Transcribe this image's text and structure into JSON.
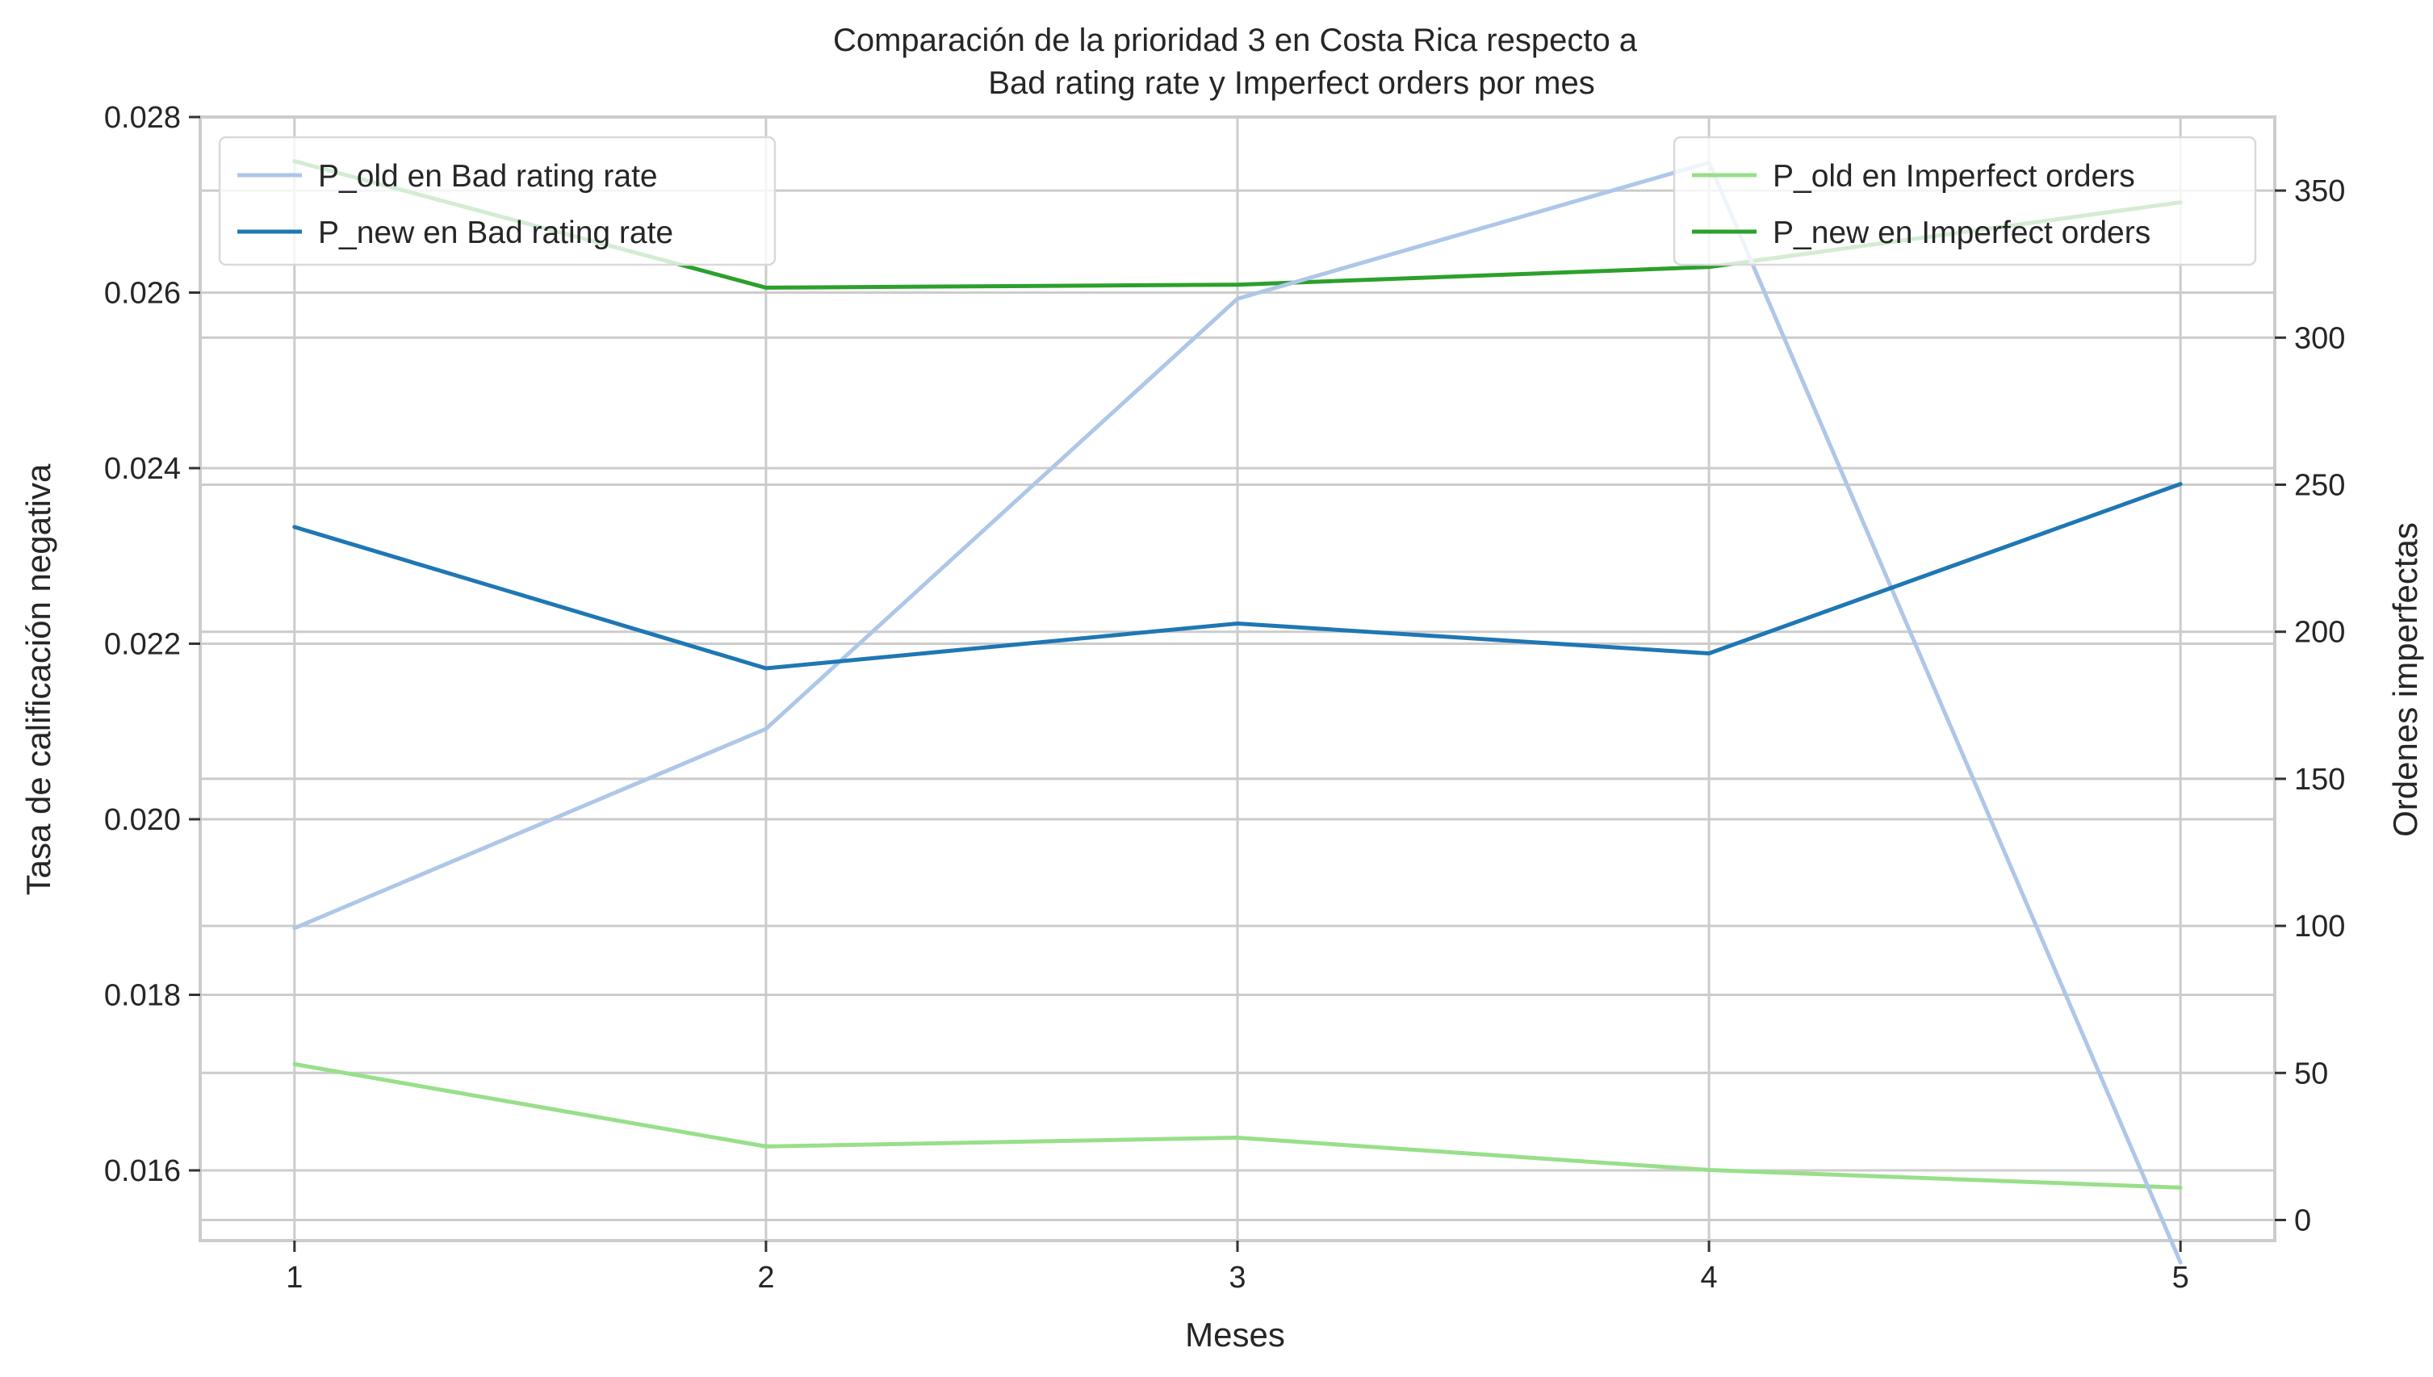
{
  "chart_data": {
    "type": "line",
    "title_lines": [
      "Comparación de la prioridad 3 en Costa Rica respecto a",
      "Bad rating rate y Imperfect orders por mes"
    ],
    "xlabel": "Meses",
    "ylabel_left": "Tasa de calificación negativa",
    "ylabel_right": "Ordenes imperfectas",
    "x": [
      1,
      2,
      3,
      4,
      5
    ],
    "xlim": [
      0.8,
      5.2
    ],
    "ylim_left": [
      0.0152,
      0.028
    ],
    "ylim_right": [
      -7,
      375
    ],
    "left_ticks": [
      "0.016",
      "0.018",
      "0.020",
      "0.022",
      "0.024",
      "0.026",
      "0.028"
    ],
    "right_ticks": [
      "0",
      "50",
      "100",
      "150",
      "200",
      "250",
      "300",
      "350"
    ],
    "grid": true,
    "series_left": [
      {
        "name": "P_old en Bad rating rate",
        "color": "#aec7e8",
        "values": [
          0.01876,
          0.02103,
          0.02593,
          0.02748,
          0.01495
        ]
      },
      {
        "name": "P_new en Bad rating rate",
        "color": "#1f77b4",
        "values": [
          0.02333,
          0.02172,
          0.02223,
          0.02189,
          0.02382
        ]
      }
    ],
    "series_right": [
      {
        "name": "P_old en Imperfect orders",
        "color": "#98df8a",
        "values": [
          53,
          25,
          28,
          17,
          11
        ]
      },
      {
        "name": "P_new en Imperfect orders",
        "color": "#2ca02c",
        "values": [
          360,
          317,
          318,
          324,
          346
        ]
      }
    ],
    "legend_left_placement": "top-left",
    "legend_right_placement": "top-right"
  }
}
